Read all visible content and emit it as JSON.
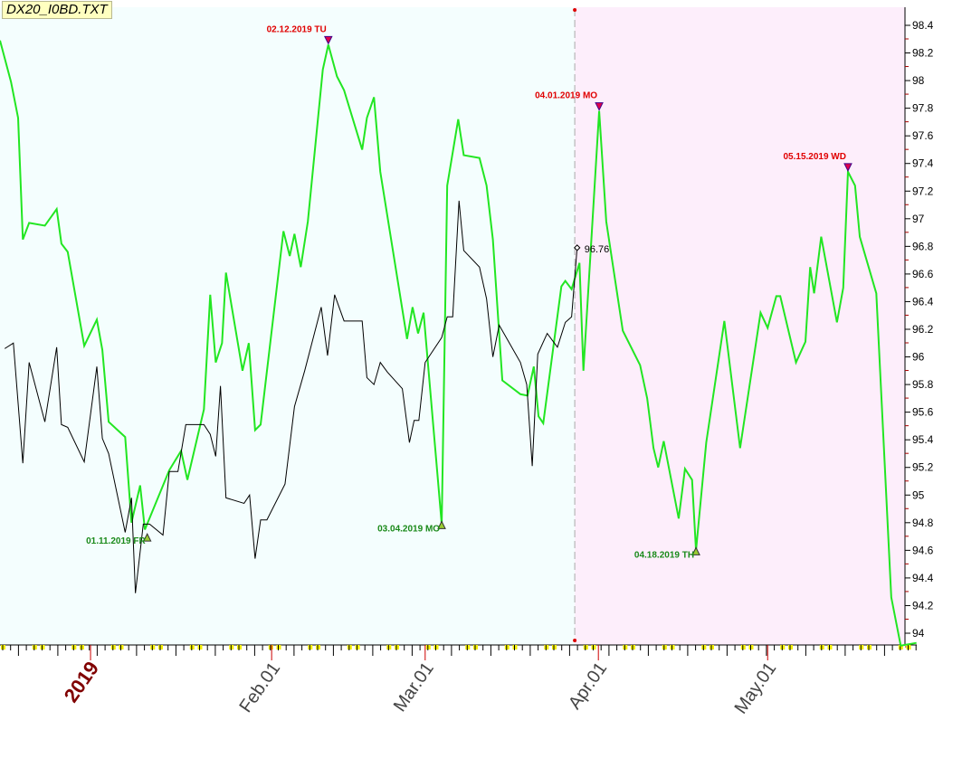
{
  "chart_data": {
    "type": "line",
    "title": "DX20_I0BD.TXT",
    "ylim": [
      94,
      98.4
    ],
    "y_ticks": [
      "94",
      "94.2",
      "94.4",
      "94.6",
      "94.8",
      "95",
      "95.2",
      "95.4",
      "95.6",
      "95.8",
      "96",
      "96.2",
      "96.4",
      "96.6",
      "96.8",
      "97",
      "97.2",
      "97.4",
      "97.6",
      "97.8",
      "98",
      "98.2",
      "98.4"
    ],
    "x_unit": "trading day index",
    "x_ticks": [
      {
        "label": "2019",
        "x": 11.5,
        "year": true
      },
      {
        "label": "Feb.01",
        "x": 34.5
      },
      {
        "label": "Mar.01",
        "x": 54
      },
      {
        "label": "Apr.01",
        "x": 76
      },
      {
        "label": "May.01",
        "x": 97.5
      }
    ],
    "divider_x": 73,
    "series": [
      {
        "name": "green",
        "color": "#22e622",
        "x": [
          0,
          1.4,
          2.3,
          2.9,
          3.7,
          5.7,
          7.2,
          7.8,
          8.6,
          10.7,
          12.3,
          13,
          13.8,
          15.9,
          16.7,
          17.8,
          18.4,
          21.5,
          23,
          23.8,
          25.9,
          26.7,
          27.4,
          28.2,
          28.7,
          30.8,
          31.6,
          32.4,
          33.1,
          36,
          36.8,
          37.4,
          38.2,
          39.1,
          41,
          41.7,
          42.8,
          43.7,
          46,
          46.6,
          47.5,
          48.3,
          51.7,
          52.4,
          53.1,
          53.8,
          56.1,
          56.8,
          58.2,
          58.9,
          60.9,
          61.8,
          62.6,
          63.8,
          66.1,
          67,
          67.8,
          68.4,
          69,
          71.3,
          71.8,
          72.6,
          73.6,
          74.1,
          76.1,
          77,
          79.1,
          81.3,
          82.2,
          83,
          83.6,
          84.3,
          86.2,
          87,
          87.9,
          88.4,
          89.7,
          92,
          94,
          96.6,
          97.5,
          98.6,
          99.1,
          101.1,
          102.3,
          102.9,
          103.4,
          104.3,
          106.3,
          107.1,
          107.7,
          108.6,
          109.2,
          111.3,
          113.2,
          114.4,
          116.4
        ],
        "values": [
          98.29,
          97.99,
          97.73,
          96.85,
          96.97,
          96.95,
          97.07,
          96.82,
          96.76,
          96.08,
          96.27,
          96.05,
          95.53,
          95.42,
          94.8,
          95.07,
          94.75,
          95.18,
          95.32,
          95.11,
          95.62,
          96.45,
          95.96,
          96.1,
          96.61,
          95.9,
          96.1,
          95.47,
          95.51,
          96.91,
          96.73,
          96.89,
          96.65,
          96.98,
          98.08,
          98.26,
          98.03,
          97.93,
          97.5,
          97.73,
          97.88,
          97.34,
          96.13,
          96.36,
          96.17,
          96.32,
          94.79,
          97.24,
          97.72,
          97.46,
          97.44,
          97.24,
          96.85,
          95.83,
          95.73,
          95.72,
          95.93,
          95.57,
          95.52,
          96.51,
          96.55,
          96.49,
          96.68,
          95.9,
          97.78,
          96.98,
          96.19,
          95.94,
          95.7,
          95.34,
          95.2,
          95.39,
          94.83,
          95.19,
          95.11,
          94.6,
          95.38,
          96.26,
          95.34,
          96.32,
          96.21,
          96.44,
          96.44,
          95.96,
          96.11,
          96.65,
          96.46,
          96.87,
          96.25,
          96.5,
          97.34,
          97.24,
          96.87,
          96.46,
          94.26,
          93.91,
          93.93
        ]
      },
      {
        "name": "black",
        "color": "#000000",
        "x": [
          0.6,
          1.7,
          2.9,
          3.7,
          5.7,
          7.2,
          7.8,
          8.6,
          10.7,
          12.3,
          13,
          13.8,
          15.9,
          16.7,
          17.2,
          18.2,
          19,
          20.7,
          21.5,
          22.6,
          23.6,
          25.9,
          26.7,
          27.4,
          28,
          28.7,
          31,
          31.7,
          32.4,
          33.1,
          33.9,
          36.2,
          37.4,
          38.7,
          40.8,
          41.6,
          42.5,
          43.7,
          46,
          46.6,
          47.5,
          48.3,
          49.2,
          51.1,
          52,
          52.6,
          53.2,
          54,
          56.1,
          56.8,
          57.5,
          58.3,
          58.9,
          60.9,
          61.8,
          62.6,
          63.4,
          66.1,
          66.9,
          67.6,
          68.3,
          69.5,
          70.8,
          71.8,
          72.6,
          73.3
        ],
        "values": [
          96.06,
          96.1,
          95.23,
          95.96,
          95.53,
          96.07,
          95.51,
          95.49,
          95.24,
          95.93,
          95.41,
          95.3,
          94.73,
          94.98,
          94.29,
          94.79,
          94.79,
          94.71,
          95.17,
          95.17,
          95.51,
          95.51,
          95.44,
          95.28,
          95.79,
          94.98,
          94.94,
          95.0,
          94.54,
          94.82,
          94.82,
          95.08,
          95.64,
          95.9,
          96.36,
          96.01,
          96.45,
          96.26,
          96.26,
          95.85,
          95.8,
          95.96,
          95.89,
          95.77,
          95.38,
          95.54,
          95.54,
          95.96,
          96.14,
          96.29,
          96.29,
          97.13,
          96.77,
          96.65,
          96.42,
          96.0,
          96.23,
          95.96,
          95.8,
          95.21,
          96.02,
          96.17,
          96.07,
          96.25,
          96.29,
          96.79
        ]
      }
    ],
    "last_value_label": "96.76",
    "annotations": [
      {
        "label": "02.12.2019 TU",
        "type": "high",
        "x": 41.7,
        "value": 98.26
      },
      {
        "label": "04.01.2019 MO",
        "type": "high",
        "x": 76.1,
        "value": 97.78
      },
      {
        "label": "05.15.2019 WD",
        "type": "high",
        "x": 107.7,
        "value": 97.34
      },
      {
        "label": "01.11.2019 FR",
        "type": "low",
        "x": 18.7,
        "value": 94.7
      },
      {
        "label": "03.04.2019 MO",
        "type": "low",
        "x": 56.1,
        "value": 94.79
      },
      {
        "label": "04.18.2019 TH",
        "type": "low",
        "x": 88.4,
        "value": 94.6
      }
    ],
    "colors": {
      "left_bg": "#f4fefe",
      "right_bg": "#fdeefb",
      "high": "#e00000",
      "low": "#1a8a1a"
    }
  }
}
